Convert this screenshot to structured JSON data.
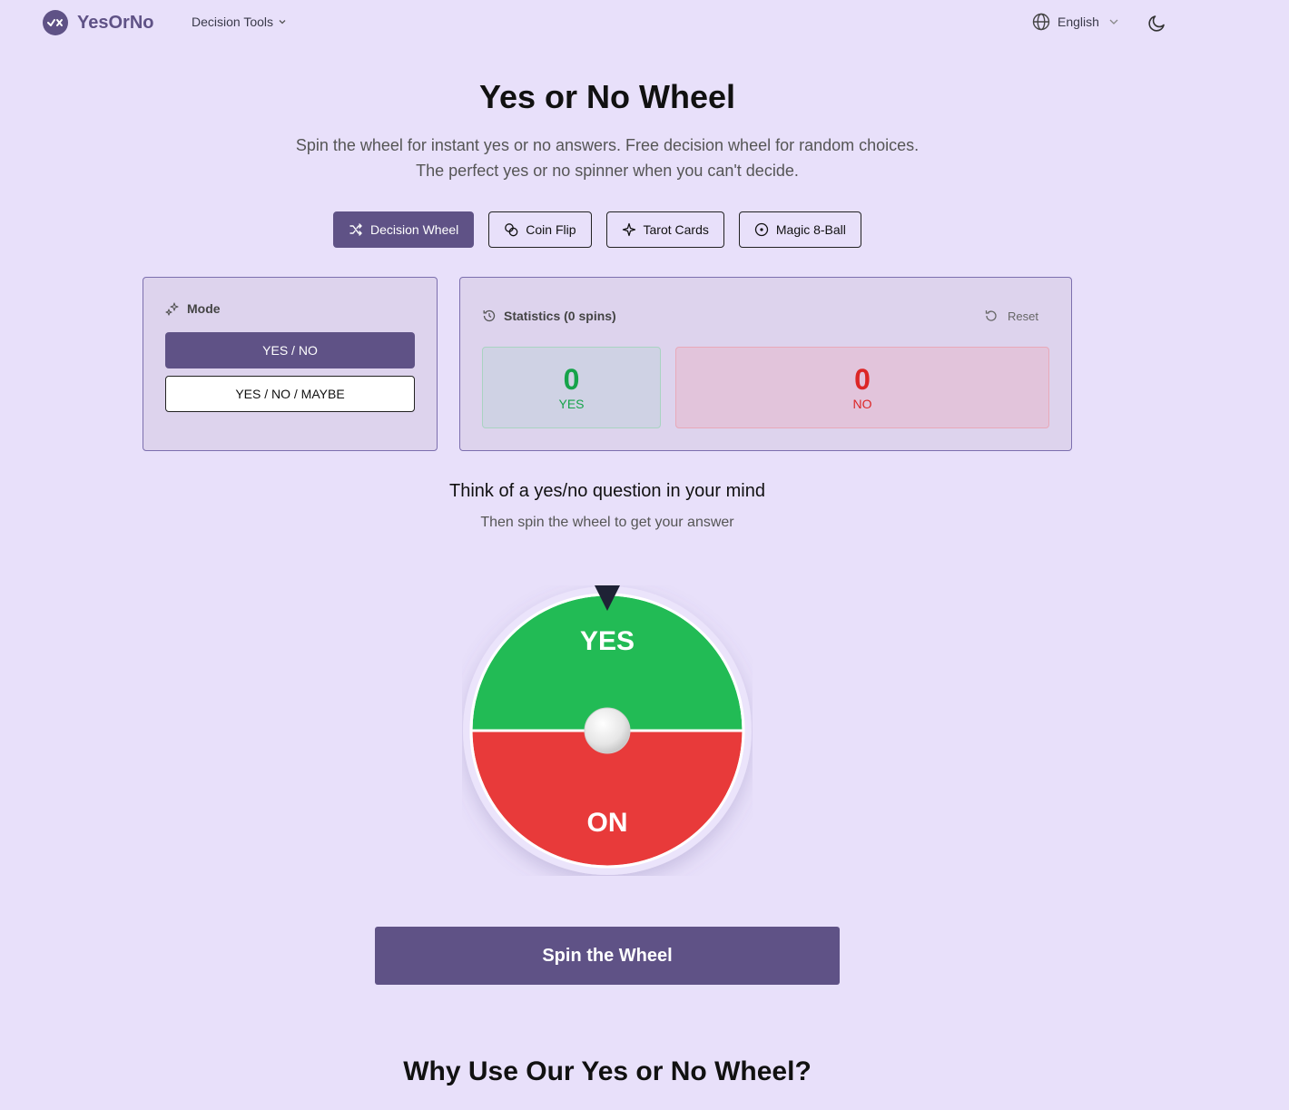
{
  "header": {
    "brand": "YesOrNo",
    "nav_tools": "Decision Tools",
    "language": "English"
  },
  "hero": {
    "title": "Yes or No Wheel",
    "subtitle_line1": "Spin the wheel for instant yes or no answers. Free decision wheel for random choices.",
    "subtitle_line2": "The perfect yes or no spinner when you can't decide."
  },
  "tabs": [
    {
      "label": "Decision Wheel",
      "icon": "shuffle-icon",
      "active": true
    },
    {
      "label": "Coin Flip",
      "icon": "coins-icon",
      "active": false
    },
    {
      "label": "Tarot Cards",
      "icon": "sparkle-icon",
      "active": false
    },
    {
      "label": "Magic 8-Ball",
      "icon": "circle-dot-icon",
      "active": false
    }
  ],
  "mode": {
    "heading": "Mode",
    "options": [
      "YES / NO",
      "YES / NO / MAYBE"
    ],
    "selected": "YES / NO"
  },
  "stats": {
    "heading": "Statistics (0 spins)",
    "reset_label": "Reset",
    "yes_count": "0",
    "yes_label": "YES",
    "no_count": "0",
    "no_label": "NO"
  },
  "prompt": {
    "title": "Think of a yes/no question in your mind",
    "subtitle": "Then spin the wheel to get your answer"
  },
  "wheel": {
    "top_label": "YES",
    "bottom_label": "ON",
    "colors": {
      "yes": "#22bb55",
      "no": "#e83a3a",
      "pointer": "#1e2235"
    }
  },
  "spin_label": "Spin the Wheel",
  "why_title": "Why Use Our Yes or No Wheel?",
  "colors": {
    "accent": "#5f5286",
    "background": "#e8e0fa"
  }
}
